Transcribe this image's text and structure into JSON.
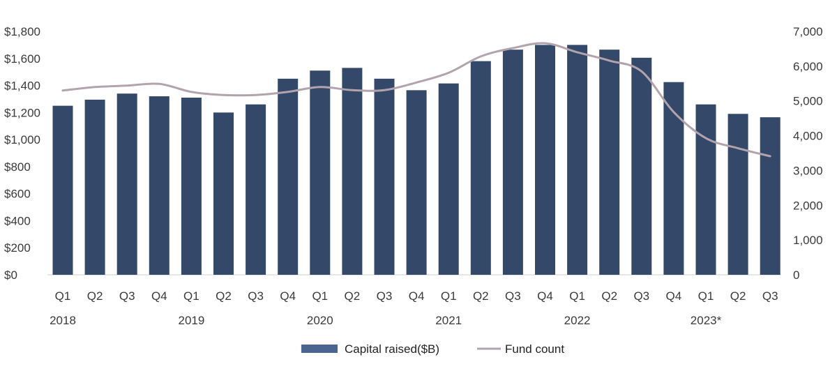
{
  "chart_data": {
    "type": "bar",
    "categories": [
      "Q1",
      "Q2",
      "Q3",
      "Q4",
      "Q1",
      "Q2",
      "Q3",
      "Q4",
      "Q1",
      "Q2",
      "Q3",
      "Q4",
      "Q1",
      "Q2",
      "Q3",
      "Q4",
      "Q1",
      "Q2",
      "Q3",
      "Q4",
      "Q1",
      "Q2",
      "Q3"
    ],
    "year_labels": [
      {
        "label": "2018",
        "index": 0
      },
      {
        "label": "2019",
        "index": 4
      },
      {
        "label": "2020",
        "index": 8
      },
      {
        "label": "2021",
        "index": 12
      },
      {
        "label": "2022",
        "index": 16
      },
      {
        "label": "2023*",
        "index": 20
      }
    ],
    "series": [
      {
        "name": "Capital raised($B)",
        "type": "bar",
        "axis": "left",
        "color": "#34496a",
        "values": [
          1250,
          1295,
          1340,
          1320,
          1310,
          1200,
          1260,
          1450,
          1510,
          1530,
          1450,
          1365,
          1415,
          1580,
          1665,
          1700,
          1700,
          1665,
          1605,
          1425,
          1260,
          1190,
          1165
        ]
      },
      {
        "name": "Fund count",
        "type": "line",
        "axis": "right",
        "color": "#b3a3ad",
        "values": [
          5300,
          5400,
          5440,
          5490,
          5260,
          5170,
          5170,
          5260,
          5400,
          5310,
          5310,
          5530,
          5810,
          6280,
          6520,
          6660,
          6400,
          6160,
          5850,
          4680,
          3930,
          3640,
          3410
        ]
      }
    ],
    "y_left": {
      "ylim": [
        0,
        1800
      ],
      "ticks": [
        "$0",
        "$200",
        "$400",
        "$600",
        "$800",
        "$1,000",
        "$1,200",
        "$1,400",
        "$1,600",
        "$1,800"
      ]
    },
    "y_right": {
      "ylim": [
        0,
        7000
      ],
      "ticks": [
        "0",
        "1,000",
        "2,000",
        "3,000",
        "4,000",
        "5,000",
        "6,000",
        "7,000"
      ]
    },
    "grid": false,
    "legend_placement": "bottom-center"
  }
}
